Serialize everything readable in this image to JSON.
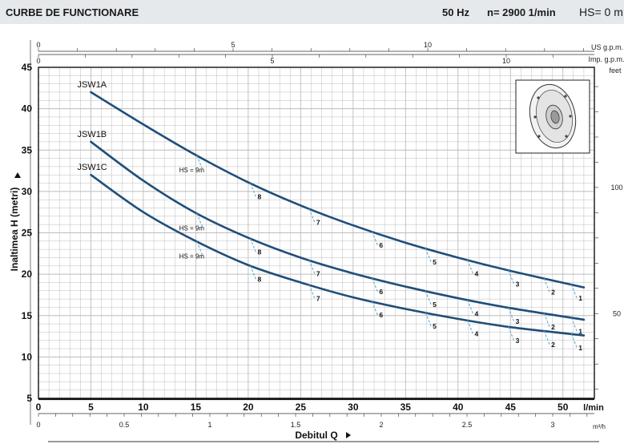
{
  "header": {
    "title": "CURBE DE FUNCTIONARE",
    "freq": "50 Hz",
    "rpm": "n= 2900  1/min",
    "hs": "HS= 0 m"
  },
  "chart_data": {
    "type": "line",
    "ylabel": "Inaltimea  H  (metri)",
    "xlabel": "Debitul  Q",
    "xlim": [
      0,
      53
    ],
    "ylim": [
      5,
      45
    ],
    "x_ticks": [
      0,
      5,
      10,
      15,
      20,
      25,
      30,
      35,
      40,
      45,
      50
    ],
    "x_unit": "l/min",
    "y_ticks": [
      5,
      10,
      15,
      20,
      25,
      30,
      35,
      40,
      45
    ],
    "axis_us_gpm": {
      "unit": "US g.p.m.",
      "ticks": [
        0,
        5,
        10
      ]
    },
    "axis_imp_gpm": {
      "unit": "Imp. g.p.m.",
      "ticks": [
        0,
        5,
        10
      ]
    },
    "axis_m3h": {
      "unit": "m³/h",
      "ticks": [
        "0",
        "0.5",
        "1",
        "1.5",
        "2",
        "2.5",
        "3"
      ]
    },
    "axis_feet": {
      "unit": "feet",
      "ticks": [
        50,
        100
      ]
    },
    "series": [
      {
        "name": "JSW1A",
        "x": [
          5,
          10,
          15,
          20,
          25,
          30,
          35,
          40,
          45,
          52
        ],
        "y": [
          42,
          38.1,
          34.4,
          31.1,
          28.3,
          25.9,
          23.8,
          22,
          20.4,
          18.4
        ]
      },
      {
        "name": "JSW1B",
        "x": [
          5,
          10,
          15,
          20,
          25,
          30,
          35,
          40,
          45,
          52
        ],
        "y": [
          36,
          31.3,
          27.4,
          24.4,
          22,
          20.1,
          18.5,
          17.1,
          15.9,
          14.5
        ]
      },
      {
        "name": "JSW1C",
        "x": [
          5,
          10,
          15,
          20,
          25,
          30,
          35,
          40,
          45,
          52
        ],
        "y": [
          32,
          27.5,
          24,
          21.1,
          19,
          17.2,
          15.8,
          14.6,
          13.6,
          12.6
        ]
      }
    ],
    "hs_annotations": [
      {
        "label": "HS = 9m",
        "series": 0,
        "x": 15.1
      },
      {
        "label": "8",
        "series": 0,
        "x": 20.2
      },
      {
        "label": "7",
        "series": 0,
        "x": 25.8
      },
      {
        "label": "6",
        "series": 0,
        "x": 31.8
      },
      {
        "label": "5",
        "series": 0,
        "x": 36.9
      },
      {
        "label": "4",
        "series": 0,
        "x": 40.9
      },
      {
        "label": "3",
        "series": 0,
        "x": 44.8
      },
      {
        "label": "2",
        "series": 0,
        "x": 48.2
      },
      {
        "label": "1",
        "series": 0,
        "x": 50.8
      },
      {
        "label": "HS = 9m",
        "series": 1,
        "x": 15.1
      },
      {
        "label": "8",
        "series": 1,
        "x": 20.2
      },
      {
        "label": "7",
        "series": 1,
        "x": 25.8
      },
      {
        "label": "6",
        "series": 1,
        "x": 31.8
      },
      {
        "label": "5",
        "series": 1,
        "x": 36.9
      },
      {
        "label": "4",
        "series": 1,
        "x": 40.9
      },
      {
        "label": "3",
        "series": 1,
        "x": 44.8
      },
      {
        "label": "2",
        "series": 1,
        "x": 48.2
      },
      {
        "label": "1",
        "series": 1,
        "x": 50.8
      },
      {
        "label": "HS = 9m",
        "series": 2,
        "x": 15.1
      },
      {
        "label": "8",
        "series": 2,
        "x": 20.2
      },
      {
        "label": "7",
        "series": 2,
        "x": 25.8
      },
      {
        "label": "6",
        "series": 2,
        "x": 31.8
      },
      {
        "label": "5",
        "series": 2,
        "x": 36.9
      },
      {
        "label": "4",
        "series": 2,
        "x": 40.9
      },
      {
        "label": "3",
        "series": 2,
        "x": 44.8
      },
      {
        "label": "2",
        "series": 2,
        "x": 48.2
      },
      {
        "label": "1",
        "series": 2,
        "x": 50.8
      }
    ],
    "grid": true,
    "colors": {
      "curve": "#1f4e79",
      "dash": "#5fa8d3",
      "grid": "#bcbcbc",
      "header_bg": "#e6e9ec"
    }
  }
}
